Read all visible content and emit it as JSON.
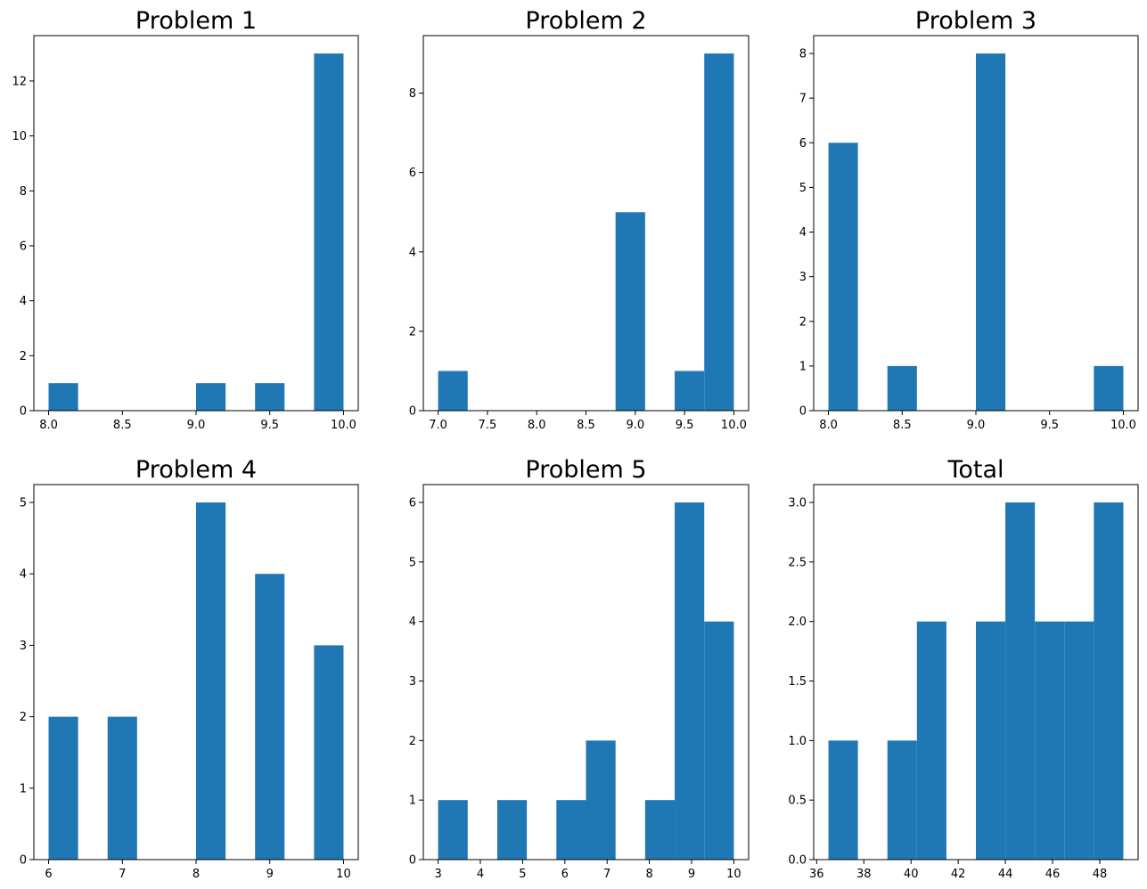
{
  "figure": {
    "background": "#ffffff",
    "bar_color": "#1f77b4"
  },
  "chart_data": [
    {
      "type": "bar",
      "title": "Problem 1",
      "xlim": [
        7.9,
        10.1
      ],
      "ylim": [
        0,
        13.65
      ],
      "xticks": [
        8.0,
        8.5,
        9.0,
        9.5,
        10.0
      ],
      "xtick_labels": [
        "8.0",
        "8.5",
        "9.0",
        "9.5",
        "10.0"
      ],
      "yticks": [
        0,
        2,
        4,
        6,
        8,
        10,
        12
      ],
      "ytick_labels": [
        "0",
        "2",
        "4",
        "6",
        "8",
        "10",
        "12"
      ],
      "bins": [
        {
          "x0": 8.0,
          "x1": 8.2,
          "count": 1
        },
        {
          "x0": 9.0,
          "x1": 9.2,
          "count": 1
        },
        {
          "x0": 9.4,
          "x1": 9.6,
          "count": 1
        },
        {
          "x0": 9.8,
          "x1": 10.0,
          "count": 13
        }
      ]
    },
    {
      "type": "bar",
      "title": "Problem 2",
      "xlim": [
        6.85,
        10.15
      ],
      "ylim": [
        0,
        9.45
      ],
      "xticks": [
        7.0,
        7.5,
        8.0,
        8.5,
        9.0,
        9.5,
        10.0
      ],
      "xtick_labels": [
        "7.0",
        "7.5",
        "8.0",
        "8.5",
        "9.0",
        "9.5",
        "10.0"
      ],
      "yticks": [
        0,
        2,
        4,
        6,
        8
      ],
      "ytick_labels": [
        "0",
        "2",
        "4",
        "6",
        "8"
      ],
      "bins": [
        {
          "x0": 7.0,
          "x1": 7.3,
          "count": 1
        },
        {
          "x0": 8.8,
          "x1": 9.1,
          "count": 5
        },
        {
          "x0": 9.4,
          "x1": 9.7,
          "count": 1
        },
        {
          "x0": 9.7,
          "x1": 10.0,
          "count": 9
        }
      ]
    },
    {
      "type": "bar",
      "title": "Problem 3",
      "xlim": [
        7.9,
        10.1
      ],
      "ylim": [
        0,
        8.4
      ],
      "xticks": [
        8.0,
        8.5,
        9.0,
        9.5,
        10.0
      ],
      "xtick_labels": [
        "8.0",
        "8.5",
        "9.0",
        "9.5",
        "10.0"
      ],
      "yticks": [
        0,
        1,
        2,
        3,
        4,
        5,
        6,
        7,
        8
      ],
      "ytick_labels": [
        "0",
        "1",
        "2",
        "3",
        "4",
        "5",
        "6",
        "7",
        "8"
      ],
      "bins": [
        {
          "x0": 8.0,
          "x1": 8.2,
          "count": 6
        },
        {
          "x0": 8.4,
          "x1": 8.6,
          "count": 1
        },
        {
          "x0": 9.0,
          "x1": 9.2,
          "count": 8
        },
        {
          "x0": 9.8,
          "x1": 10.0,
          "count": 1
        }
      ]
    },
    {
      "type": "bar",
      "title": "Problem 4",
      "xlim": [
        5.8,
        10.2
      ],
      "ylim": [
        0,
        5.25
      ],
      "xticks": [
        6,
        7,
        8,
        9,
        10
      ],
      "xtick_labels": [
        "6",
        "7",
        "8",
        "9",
        "10"
      ],
      "yticks": [
        0,
        1,
        2,
        3,
        4,
        5
      ],
      "ytick_labels": [
        "0",
        "1",
        "2",
        "3",
        "4",
        "5"
      ],
      "bins": [
        {
          "x0": 6.0,
          "x1": 6.4,
          "count": 2
        },
        {
          "x0": 6.8,
          "x1": 7.2,
          "count": 2
        },
        {
          "x0": 8.0,
          "x1": 8.4,
          "count": 5
        },
        {
          "x0": 8.8,
          "x1": 9.2,
          "count": 4
        },
        {
          "x0": 9.6,
          "x1": 10.0,
          "count": 3
        }
      ]
    },
    {
      "type": "bar",
      "title": "Problem 5",
      "xlim": [
        2.65,
        10.35
      ],
      "ylim": [
        0,
        6.3
      ],
      "xticks": [
        3,
        4,
        5,
        6,
        7,
        8,
        9,
        10
      ],
      "xtick_labels": [
        "3",
        "4",
        "5",
        "6",
        "7",
        "8",
        "9",
        "10"
      ],
      "yticks": [
        0,
        1,
        2,
        3,
        4,
        5,
        6
      ],
      "ytick_labels": [
        "0",
        "1",
        "2",
        "3",
        "4",
        "5",
        "6"
      ],
      "bins": [
        {
          "x0": 3.0,
          "x1": 3.7,
          "count": 1
        },
        {
          "x0": 4.4,
          "x1": 5.1,
          "count": 1
        },
        {
          "x0": 5.8,
          "x1": 6.5,
          "count": 1
        },
        {
          "x0": 6.5,
          "x1": 7.2,
          "count": 2
        },
        {
          "x0": 7.9,
          "x1": 8.6,
          "count": 1
        },
        {
          "x0": 8.6,
          "x1": 9.3,
          "count": 6
        },
        {
          "x0": 9.3,
          "x1": 10.0,
          "count": 4
        }
      ]
    },
    {
      "type": "bar",
      "title": "Total",
      "xlim": [
        35.875,
        49.625
      ],
      "ylim": [
        0,
        3.15
      ],
      "xticks": [
        36,
        38,
        40,
        42,
        44,
        46,
        48
      ],
      "xtick_labels": [
        "36",
        "38",
        "40",
        "42",
        "44",
        "46",
        "48"
      ],
      "yticks": [
        0,
        0.5,
        1.0,
        1.5,
        2.0,
        2.5,
        3.0
      ],
      "ytick_labels": [
        "0.0",
        "0.5",
        "1.0",
        "1.5",
        "2.0",
        "2.5",
        "3.0"
      ],
      "bins": [
        {
          "x0": 36.5,
          "x1": 37.75,
          "count": 1
        },
        {
          "x0": 39.0,
          "x1": 40.25,
          "count": 1
        },
        {
          "x0": 40.25,
          "x1": 41.5,
          "count": 2
        },
        {
          "x0": 42.75,
          "x1": 44.0,
          "count": 2
        },
        {
          "x0": 44.0,
          "x1": 45.25,
          "count": 3
        },
        {
          "x0": 45.25,
          "x1": 46.5,
          "count": 2
        },
        {
          "x0": 46.5,
          "x1": 47.75,
          "count": 2
        },
        {
          "x0": 47.75,
          "x1": 49.0,
          "count": 3
        }
      ]
    }
  ]
}
